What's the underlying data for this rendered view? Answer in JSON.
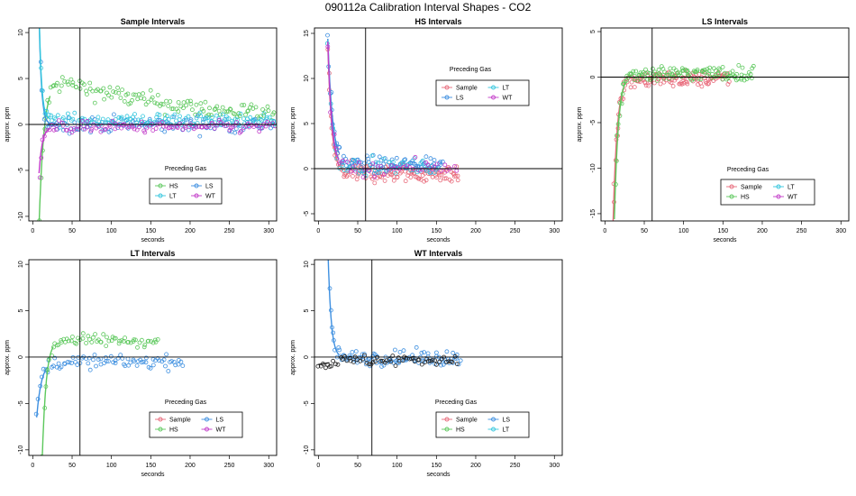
{
  "figure_title": "090112a   Calibration Interval Shapes - CO2",
  "colors": {
    "Sample": "#E8697A",
    "HS": "#5CC85C",
    "LS": "#3D8FE0",
    "LT": "#33C6DD",
    "WT": "#C23BC9",
    "WT_LT": "#222222"
  },
  "chart_data": [
    {
      "id": "sample",
      "type": "scatter",
      "title": "Sample Intervals",
      "xlabel": "seconds",
      "ylabel": "approx. ppm",
      "xlim": [
        -5,
        310
      ],
      "ylim": [
        -10.5,
        10.5
      ],
      "xticks": [
        0,
        50,
        100,
        150,
        200,
        250,
        300
      ],
      "yticks": [
        -10,
        -5,
        0,
        5,
        10
      ],
      "vline": 60,
      "hline": 0,
      "legend": {
        "title": "Preceding Gas",
        "position": "lower-middle",
        "entries": [
          "HS",
          "LS",
          "LT",
          "WT"
        ]
      },
      "series": [
        {
          "name": "HS",
          "x_range": [
            8,
            308
          ],
          "step": 2.2,
          "pattern": "arch",
          "start": -11,
          "tau": 6,
          "amp": 4.6,
          "decay": 180,
          "noise": 1.0,
          "drift": 0
        },
        {
          "name": "LS",
          "x_range": [
            8,
            308
          ],
          "step": 2.2,
          "pattern": "decay",
          "start": 12,
          "tau": 3,
          "amp": 0,
          "decay": 100,
          "noise": 0.85,
          "drift": 0
        },
        {
          "name": "LT",
          "x_range": [
            8,
            308
          ],
          "step": 2.4,
          "pattern": "decay",
          "start": 12,
          "tau": 3,
          "amp": 0,
          "decay": 100,
          "noise": 0.7,
          "drift": 0.5
        },
        {
          "name": "WT",
          "x_range": [
            8,
            308
          ],
          "step": 2.6,
          "pattern": "decay",
          "start": -5,
          "tau": 4,
          "amp": 0,
          "decay": 100,
          "noise": 0.6,
          "drift": -0.3
        }
      ]
    },
    {
      "id": "hs",
      "type": "scatter",
      "title": "HS Intervals",
      "xlabel": "seconds",
      "ylabel": "approx. ppm",
      "xlim": [
        -5,
        310
      ],
      "ylim": [
        -5.8,
        15.6
      ],
      "xticks": [
        0,
        50,
        100,
        150,
        200,
        250,
        300
      ],
      "yticks": [
        -5,
        0,
        5,
        10,
        15
      ],
      "vline": 60,
      "hline": 0,
      "legend": {
        "title": "Preceding Gas",
        "position": "top-right",
        "entries": [
          "Sample",
          "LT",
          "LS",
          "WT"
        ]
      },
      "series": [
        {
          "name": "Sample",
          "x_range": [
            12,
            178
          ],
          "step": 1.2,
          "pattern": "decay",
          "start": 14,
          "tau": 5,
          "amp": 0,
          "decay": 100,
          "noise": 1.0,
          "drift": -0.5
        },
        {
          "name": "LS",
          "x_range": [
            12,
            158
          ],
          "step": 1.4,
          "pattern": "decay",
          "start": 14,
          "tau": 6,
          "amp": 0,
          "decay": 100,
          "noise": 0.9,
          "drift": 0.4
        },
        {
          "name": "LT",
          "x_range": [
            12,
            152
          ],
          "step": 3,
          "pattern": "decay",
          "start": 14,
          "tau": 5,
          "amp": 0,
          "decay": 100,
          "noise": 0.8,
          "drift": 0.2
        },
        {
          "name": "WT",
          "x_range": [
            12,
            178
          ],
          "step": 4,
          "pattern": "decay",
          "start": 14,
          "tau": 5,
          "amp": 0,
          "decay": 100,
          "noise": 0.8,
          "drift": 0.1
        }
      ]
    },
    {
      "id": "ls",
      "type": "scatter",
      "title": "LS Intervals",
      "xlabel": "seconds",
      "ylabel": "approx. ppm",
      "xlim": [
        -5,
        310
      ],
      "ylim": [
        -15.8,
        5.4
      ],
      "xticks": [
        0,
        50,
        100,
        150,
        200,
        250,
        300
      ],
      "yticks": [
        -15,
        -10,
        -5,
        0,
        5
      ],
      "vline": 60,
      "hline": 0,
      "legend": {
        "title": "Preceding Gas",
        "position": "lower-middle",
        "entries": [
          "Sample",
          "LT",
          "HS",
          "WT"
        ]
      },
      "series": [
        {
          "name": "Sample",
          "x_range": [
            10,
            158
          ],
          "step": 1.1,
          "pattern": "decay",
          "start": -17,
          "tau": 5,
          "amp": 0,
          "decay": 100,
          "noise": 0.8,
          "drift": -0.2
        },
        {
          "name": "HS",
          "x_range": [
            12,
            190
          ],
          "step": 1.3,
          "pattern": "decay",
          "start": -16,
          "tau": 5,
          "amp": 0,
          "decay": 100,
          "noise": 0.8,
          "drift": 0.4
        }
      ]
    },
    {
      "id": "lt",
      "type": "scatter",
      "title": "LT Intervals",
      "xlabel": "seconds",
      "ylabel": "approx. ppm",
      "xlim": [
        -5,
        310
      ],
      "ylim": [
        -10.6,
        10.5
      ],
      "xticks": [
        0,
        50,
        100,
        150,
        200,
        250,
        300
      ],
      "yticks": [
        -10,
        -5,
        0,
        5,
        10
      ],
      "vline": 60,
      "hline": 0,
      "legend": {
        "title": "Preceding Gas",
        "position": "lower-middle",
        "entries": [
          "Sample",
          "LS",
          "HS",
          "WT"
        ]
      },
      "series": [
        {
          "name": "LS",
          "x_range": [
            5,
            192
          ],
          "step": 2.3,
          "pattern": "decay",
          "start": -6,
          "tau": 6,
          "amp": 0,
          "decay": 100,
          "noise": 0.7,
          "drift": -0.5
        },
        {
          "name": "HS",
          "x_range": [
            12,
            160
          ],
          "step": 2.3,
          "pattern": "arch",
          "start": -11,
          "tau": 5,
          "amp": 1.9,
          "decay": 1000,
          "noise": 0.6,
          "drift": 0
        }
      ]
    },
    {
      "id": "wt",
      "type": "scatter",
      "title": "WT Intervals",
      "xlabel": "seconds",
      "ylabel": "approx. ppm",
      "xlim": [
        -5,
        310
      ],
      "ylim": [
        -10.6,
        10.5
      ],
      "xticks": [
        0,
        50,
        100,
        150,
        200,
        250,
        300
      ],
      "yticks": [
        -10,
        -5,
        0,
        5,
        10
      ],
      "vline": 68,
      "hline": 0,
      "legend": {
        "title": "Preceding Gas",
        "position": "lower-middle",
        "entries": [
          "Sample",
          "LS",
          "HS",
          "LT"
        ]
      },
      "series": [
        {
          "name": "LS",
          "x_range": [
            12,
            180
          ],
          "step": 1.6,
          "pattern": "decay",
          "start": 12,
          "tau": 4,
          "amp": 0,
          "decay": 100,
          "noise": 0.75,
          "drift": -0.1
        },
        {
          "name": "WT_LT",
          "x_range": [
            0,
            178
          ],
          "step": 2.8,
          "pattern": "decay",
          "start": -0.5,
          "tau": 30,
          "amp": 0,
          "decay": 100,
          "noise": 0.6,
          "drift": -0.3
        }
      ]
    }
  ]
}
